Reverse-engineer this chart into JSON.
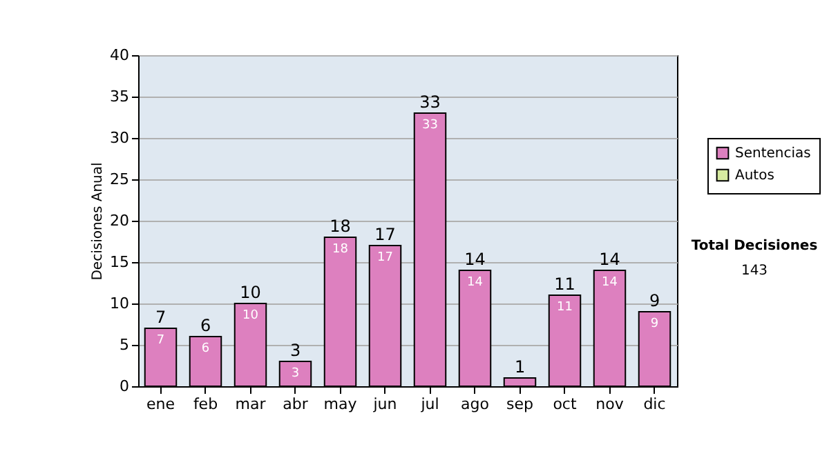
{
  "chart_data": {
    "type": "bar",
    "ylabel": "Decisiones Anual",
    "categories": [
      "ene",
      "feb",
      "mar",
      "abr",
      "may",
      "jun",
      "jul",
      "ago",
      "sep",
      "oct",
      "nov",
      "dic"
    ],
    "series": [
      {
        "name": "Sentencias",
        "color": "#dd80bf",
        "values": [
          7,
          6,
          10,
          3,
          18,
          17,
          33,
          14,
          1,
          11,
          14,
          9
        ],
        "value_labels": [
          "7",
          "6",
          "10",
          "3",
          "18",
          "17",
          "33",
          "14",
          null,
          "11",
          "14",
          "9"
        ]
      },
      {
        "name": "Autos",
        "color": "#d6eaa0",
        "values": [
          0,
          0,
          0,
          0,
          0,
          0,
          0,
          0,
          0,
          0,
          0,
          0
        ]
      }
    ],
    "stacked": true,
    "totals": [
      "7",
      "6",
      "10",
      "3",
      "18",
      "17",
      "33",
      "14",
      "1",
      "11",
      "14",
      "9"
    ],
    "ylim": [
      0,
      40
    ],
    "yticks": [
      0,
      5,
      10,
      15,
      20,
      25,
      30,
      35,
      40
    ],
    "grid": "y",
    "legend": "right",
    "annotations": [
      "Total Decisiones",
      "143"
    ]
  }
}
